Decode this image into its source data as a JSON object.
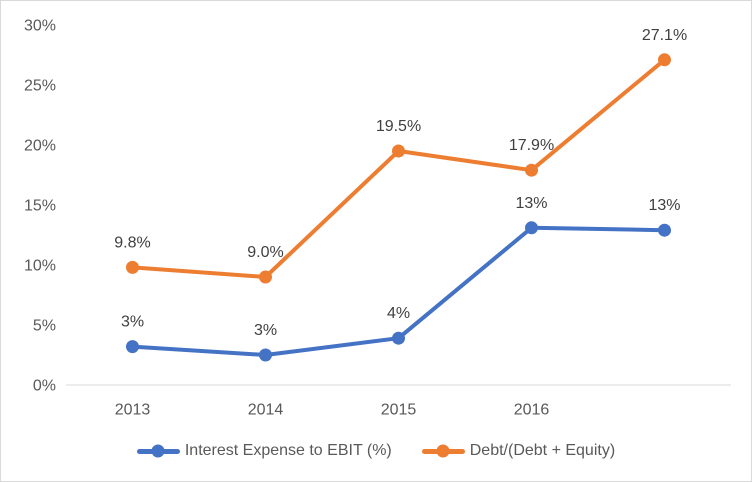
{
  "chart_data": {
    "type": "line",
    "categories": [
      "2013",
      "2014",
      "2015",
      "2016",
      ""
    ],
    "series": [
      {
        "name": "Interest Expense to EBIT (%)",
        "color": "#4472C4",
        "values": [
          3.2,
          2.5,
          3.9,
          13.1,
          12.9
        ],
        "point_labels": [
          "3%",
          "3%",
          "4%",
          "13%",
          "13%"
        ]
      },
      {
        "name": "Debt/(Debt + Equity)",
        "color": "#ED7D31",
        "values": [
          9.8,
          9.0,
          19.5,
          17.9,
          27.1
        ],
        "point_labels": [
          "9.8%",
          "9.0%",
          "19.5%",
          "17.9%",
          "27.1%"
        ]
      }
    ],
    "y_axis": {
      "min": 0,
      "max": 30,
      "step": 5,
      "tick_labels": [
        "0%",
        "5%",
        "10%",
        "15%",
        "20%",
        "25%",
        "30%"
      ]
    },
    "grid": false,
    "legend_position": "bottom",
    "marker_shape": "circle"
  },
  "legend": {
    "items": [
      {
        "label": "Interest Expense to EBIT (%)",
        "color": "#4472C4"
      },
      {
        "label": "Debt/(Debt + Equity)",
        "color": "#ED7D31"
      }
    ]
  },
  "colors": {
    "axis_line": "#D9D9D9",
    "frame_border": "#D9D9D9",
    "tick_label": "#595959",
    "data_label": "#404040",
    "background": "#FFFFFF"
  }
}
